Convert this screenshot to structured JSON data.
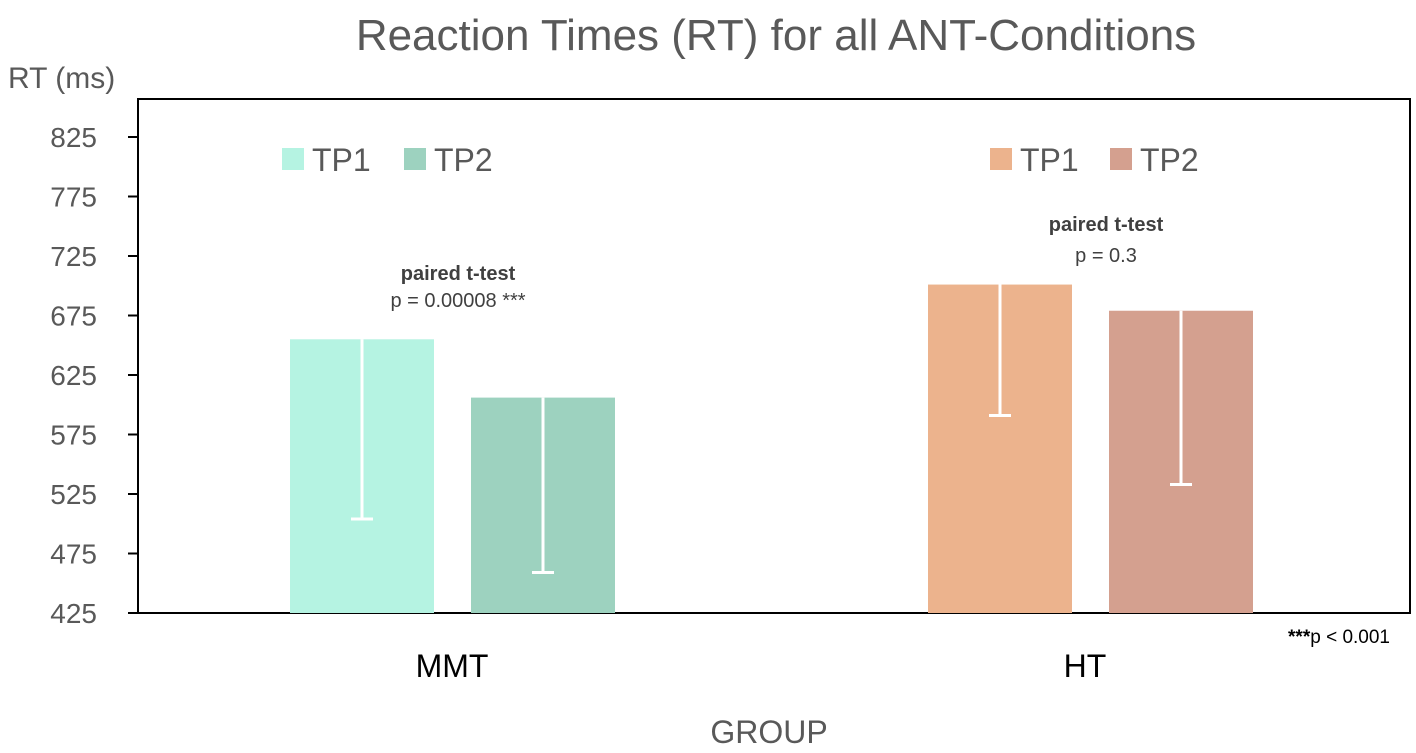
{
  "chart_data": {
    "type": "bar",
    "title": "Reaction Times (RT) for all ANT-Conditions",
    "ylabel": "RT (ms)",
    "xlabel": "GROUP",
    "ylim": [
      425,
      825
    ],
    "yticks": [
      "825",
      "775",
      "725",
      "675",
      "625",
      "575",
      "525",
      "475",
      "425"
    ],
    "categories": [
      "MMT",
      "HT"
    ],
    "groups": [
      {
        "category": "MMT",
        "bars": [
          {
            "name": "TP1",
            "value": 655,
            "error_low": 504,
            "color": "#b5f3e2"
          },
          {
            "name": "TP2",
            "value": 606,
            "error_low": 459,
            "color": "#9dd2bf"
          }
        ],
        "legend": [
          {
            "label": "TP1",
            "color": "#b5f3e2"
          },
          {
            "label": "TP2",
            "color": "#9dd2bf"
          }
        ],
        "annotation": {
          "test": "paired t-test",
          "p": "p = 0.00008 ***"
        }
      },
      {
        "category": "HT",
        "bars": [
          {
            "name": "TP1",
            "value": 701,
            "error_low": 591,
            "color": "#ecb38d"
          },
          {
            "name": "TP2",
            "value": 679,
            "error_low": 533,
            "color": "#d4a08f"
          }
        ],
        "legend": [
          {
            "label": "TP1",
            "color": "#ecb38d"
          },
          {
            "label": "TP2",
            "color": "#d4a08f"
          }
        ],
        "annotation": {
          "test": "paired t-test",
          "p": "p = 0.3"
        }
      }
    ],
    "significance_note": {
      "stars": "***",
      "text": "p < 0.001"
    },
    "grid": false,
    "legend_position": "top, one legend per group"
  }
}
